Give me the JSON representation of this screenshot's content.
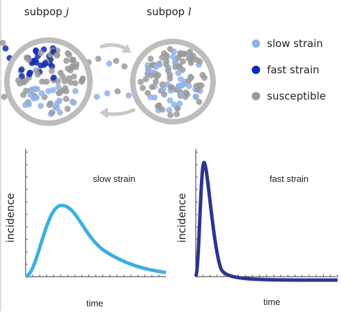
{
  "subpops": [
    {
      "label": "subpop",
      "var": "j"
    },
    {
      "label": "subpop",
      "var": "l"
    }
  ],
  "legend": [
    {
      "label": "slow strain",
      "color": "#8fb3e6"
    },
    {
      "label": "fast strain",
      "color": "#0f2bb0"
    },
    {
      "label": "susceptible",
      "color": "#9a9a9a"
    }
  ],
  "panels": [
    {
      "title": "slow strain",
      "ylabel": "incidence",
      "xlabel": "time"
    },
    {
      "title": "fast strain",
      "ylabel": "incidence",
      "xlabel": "time"
    }
  ]
}
